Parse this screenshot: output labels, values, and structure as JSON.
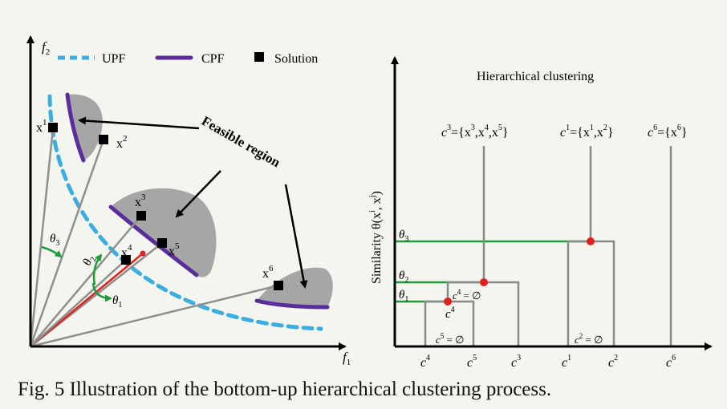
{
  "left": {
    "x_axis": "f",
    "x_axis_sub": "1",
    "y_axis": "f",
    "y_axis_sub": "2",
    "legend": {
      "upf": "UPF",
      "cpf": "CPF",
      "solution": "Solution"
    },
    "feasible_label": "Feasible region",
    "solutions": [
      {
        "base": "x",
        "sup": "1"
      },
      {
        "base": "x",
        "sup": "2"
      },
      {
        "base": "x",
        "sup": "3"
      },
      {
        "base": "x",
        "sup": "4"
      },
      {
        "base": "x",
        "sup": "5"
      },
      {
        "base": "x",
        "sup": "6"
      }
    ],
    "angles": [
      {
        "base": "θ",
        "sub": "1"
      },
      {
        "base": "θ",
        "sub": "2"
      },
      {
        "base": "θ",
        "sub": "3"
      }
    ]
  },
  "right": {
    "title": "Hierarchical clustering",
    "y_axis": "Similarity θ(x",
    "y_axis_sup_i": "i",
    "y_axis_mid": ", x",
    "y_axis_sup_j": "j",
    "y_axis_end": ")",
    "thresholds": [
      {
        "base": "θ",
        "sub": "3"
      },
      {
        "base": "θ",
        "sub": "2"
      },
      {
        "base": "θ",
        "sub": "1"
      }
    ],
    "clusters_top": {
      "c3": {
        "name": "c",
        "sup": "3",
        "body": "={x",
        "s1": "3",
        "b2": ",x",
        "s2": "4",
        "b3": ",x",
        "s3": "5",
        "end": "}"
      },
      "c1": {
        "name": "c",
        "sup": "1",
        "body": "={x",
        "s1": "1",
        "b2": ",x",
        "s2": "2",
        "end": "}"
      },
      "c6": {
        "name": "c",
        "sup": "6",
        "body": "={x",
        "s1": "6",
        "end": "}"
      }
    },
    "c4_empty": {
      "name": "c",
      "sup": "4",
      "rest": " = ∅"
    },
    "c4_label": {
      "name": "c",
      "sup": "4"
    },
    "c5_empty": {
      "name": "c",
      "sup": "5",
      "rest": " = ∅"
    },
    "c2_empty": {
      "name": "c",
      "sup": "2",
      "rest": " = ∅"
    },
    "leaves": [
      {
        "name": "c",
        "sup": "4"
      },
      {
        "name": "c",
        "sup": "5"
      },
      {
        "name": "c",
        "sup": "3"
      },
      {
        "name": "c",
        "sup": "1"
      },
      {
        "name": "c",
        "sup": "2"
      },
      {
        "name": "c",
        "sup": "6"
      }
    ]
  },
  "caption": "Fig. 5 Illustration of the bottom-up hierarchical clustering process.",
  "colors": {
    "upf": "#3aaee0",
    "cpf": "#5a2d9c",
    "region": "#a6a6a6",
    "green": "#1f9b3c",
    "red": "#e02020",
    "ray": "#8f8f8f"
  }
}
